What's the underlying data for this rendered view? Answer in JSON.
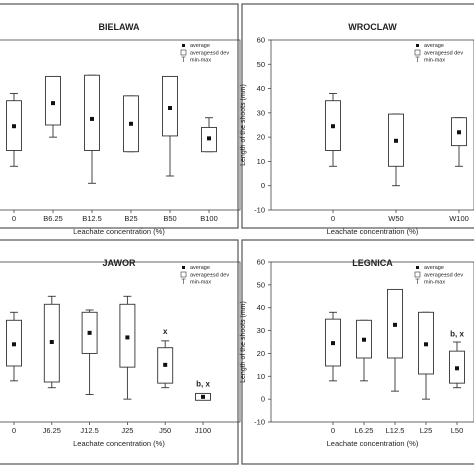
{
  "colors": {
    "panel_border": "#555555",
    "box_stroke": "#333333",
    "box_fill": "#ffffff",
    "mean_marker": "#111111",
    "whisker": "#333333"
  },
  "legend": {
    "average": "average",
    "sd": "average±sd dev",
    "minmax": "min-max"
  },
  "chart_data": [
    {
      "type": "box",
      "title": "BIELAWA",
      "xlabel": "Leachate concentration (%)",
      "ylabel": "",
      "ylim": [
        -10,
        60
      ],
      "yticks": [],
      "categories": [
        "0",
        "B6.25",
        "B12.5",
        "B25",
        "B50",
        "B100"
      ],
      "mean": [
        24.5,
        34,
        27.5,
        25.5,
        32,
        19.5
      ],
      "sd_low": [
        14.5,
        25,
        14.5,
        14,
        20.5,
        14
      ],
      "sd_high": [
        35,
        45,
        45.5,
        37,
        45,
        24
      ],
      "min": [
        8,
        20,
        1,
        14,
        4,
        14
      ],
      "max": [
        38,
        45,
        45.5,
        37,
        45,
        28
      ],
      "annotations": [],
      "legend": "top-right"
    },
    {
      "type": "box",
      "title": "WROCLAW",
      "xlabel": "Leachate concentration (%)",
      "ylabel": "Length of the shoots (mm)",
      "ylim": [
        -10,
        60
      ],
      "yticks": [
        -10,
        0,
        10,
        20,
        30,
        40,
        50,
        60
      ],
      "categories": [
        "0",
        "W50",
        "W100"
      ],
      "mean": [
        24.5,
        18.5,
        22
      ],
      "sd_low": [
        14.5,
        8,
        16.5
      ],
      "sd_high": [
        35,
        29.5,
        28
      ],
      "min": [
        8,
        0,
        8
      ],
      "max": [
        38,
        29.5,
        28
      ],
      "annotations": [],
      "legend": "top-right"
    },
    {
      "type": "box",
      "title": "JAWOR",
      "xlabel": "Leachate concentration (%)",
      "ylabel": "",
      "ylim": [
        -10,
        60
      ],
      "yticks": [],
      "categories": [
        "0",
        "J6.25",
        "J12.5",
        "J25",
        "J50",
        "J100"
      ],
      "mean": [
        24,
        25,
        29,
        27,
        15,
        1
      ],
      "sd_low": [
        14.5,
        7.5,
        20,
        14,
        7,
        -0.5
      ],
      "sd_high": [
        34.5,
        41.5,
        38,
        41.5,
        22.5,
        2.5
      ],
      "min": [
        8,
        5,
        2,
        0,
        5,
        0
      ],
      "max": [
        38,
        45,
        39,
        45,
        25.5,
        2.5
      ],
      "annotations": [
        {
          "category": "J50",
          "text": "x",
          "y": 28.5
        },
        {
          "category": "J100",
          "text": "b, x",
          "y": 5.5
        }
      ],
      "legend": "top-right"
    },
    {
      "type": "box",
      "title": "LEGNICA",
      "xlabel": "Leachate concentration (%)",
      "ylabel": "Length of the shoots (mm)",
      "ylim": [
        -10,
        60
      ],
      "yticks": [
        -10,
        0,
        10,
        20,
        30,
        40,
        50,
        60
      ],
      "categories": [
        "0",
        "L6.25",
        "L12.5",
        "L25",
        "L50"
      ],
      "mean": [
        24.5,
        26,
        32.5,
        24,
        13.5
      ],
      "sd_low": [
        14.5,
        18,
        18,
        11,
        7
      ],
      "sd_high": [
        35,
        34.5,
        48,
        38,
        21
      ],
      "min": [
        8,
        8,
        3.5,
        0,
        5
      ],
      "max": [
        38,
        34.5,
        48,
        38,
        25
      ],
      "annotations": [
        {
          "category": "L50",
          "text": "b, x",
          "y": 27.5
        }
      ],
      "legend": "top-right"
    }
  ]
}
